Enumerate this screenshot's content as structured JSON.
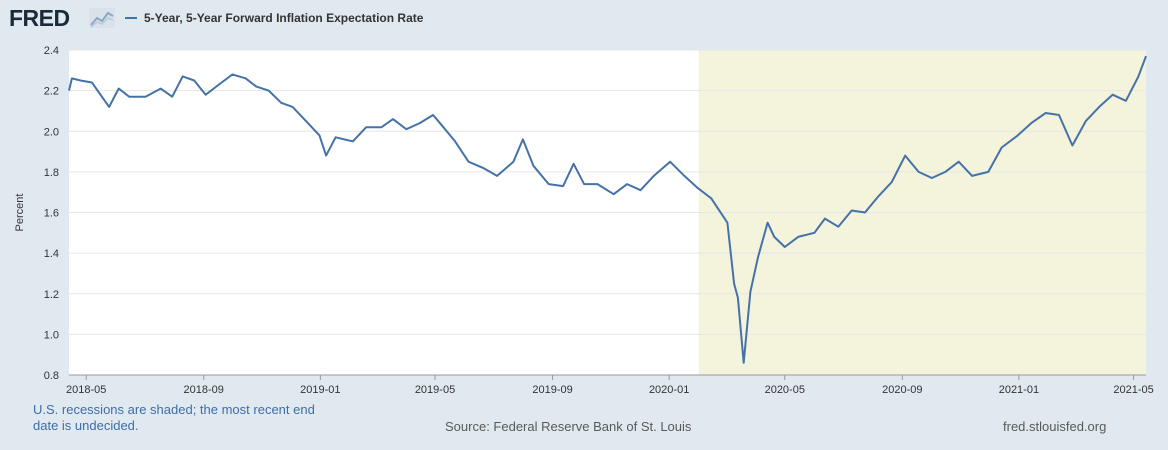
{
  "header": {
    "logo_text": "FRED",
    "logo_icon": "chart-line-icon",
    "legend_label": "5-Year, 5-Year Forward Inflation Expectation Rate"
  },
  "chart_data": {
    "type": "line",
    "title": "5-Year, 5-Year Forward Inflation Expectation Rate",
    "ylabel": "Percent",
    "xlabel": "",
    "ylim": [
      0.8,
      2.4
    ],
    "y_ticks": [
      "0.8",
      "1.0",
      "1.2",
      "1.4",
      "1.6",
      "1.8",
      "2.0",
      "2.2",
      "2.4"
    ],
    "x_ticks": [
      "2018-05",
      "2018-09",
      "2019-01",
      "2019-05",
      "2019-09",
      "2020-01",
      "2020-05",
      "2020-09",
      "2021-01",
      "2021-05"
    ],
    "xlim": [
      "2018-04-13",
      "2021-05-14"
    ],
    "recession_shading": {
      "start": "2020-02-01",
      "end": "2021-05-14"
    },
    "series": [
      {
        "name": "5-Year, 5-Year Forward Inflation Expectation Rate",
        "color": "#4572a7",
        "points": [
          [
            "2018-04-13",
            2.2
          ],
          [
            "2018-04-16",
            2.26
          ],
          [
            "2018-04-25",
            2.25
          ],
          [
            "2018-05-07",
            2.24
          ],
          [
            "2018-05-25",
            2.12
          ],
          [
            "2018-06-04",
            2.21
          ],
          [
            "2018-06-15",
            2.17
          ],
          [
            "2018-07-02",
            2.17
          ],
          [
            "2018-07-18",
            2.21
          ],
          [
            "2018-07-30",
            2.17
          ],
          [
            "2018-08-10",
            2.27
          ],
          [
            "2018-08-22",
            2.25
          ],
          [
            "2018-09-03",
            2.18
          ],
          [
            "2018-09-17",
            2.23
          ],
          [
            "2018-10-01",
            2.28
          ],
          [
            "2018-10-15",
            2.26
          ],
          [
            "2018-10-26",
            2.22
          ],
          [
            "2018-11-08",
            2.2
          ],
          [
            "2018-11-21",
            2.14
          ],
          [
            "2018-12-03",
            2.12
          ],
          [
            "2018-12-17",
            2.05
          ],
          [
            "2018-12-31",
            1.98
          ],
          [
            "2019-01-07",
            1.88
          ],
          [
            "2019-01-17",
            1.97
          ],
          [
            "2019-02-04",
            1.95
          ],
          [
            "2019-02-18",
            2.02
          ],
          [
            "2019-03-06",
            2.02
          ],
          [
            "2019-03-18",
            2.06
          ],
          [
            "2019-04-01",
            2.01
          ],
          [
            "2019-04-15",
            2.04
          ],
          [
            "2019-04-29",
            2.08
          ],
          [
            "2019-05-08",
            2.03
          ],
          [
            "2019-05-22",
            1.95
          ],
          [
            "2019-06-05",
            1.85
          ],
          [
            "2019-06-20",
            1.82
          ],
          [
            "2019-07-05",
            1.78
          ],
          [
            "2019-07-22",
            1.85
          ],
          [
            "2019-08-01",
            1.96
          ],
          [
            "2019-08-12",
            1.83
          ],
          [
            "2019-08-28",
            1.74
          ],
          [
            "2019-09-12",
            1.73
          ],
          [
            "2019-09-23",
            1.84
          ],
          [
            "2019-10-04",
            1.74
          ],
          [
            "2019-10-18",
            1.74
          ],
          [
            "2019-11-04",
            1.69
          ],
          [
            "2019-11-18",
            1.74
          ],
          [
            "2019-12-02",
            1.71
          ],
          [
            "2019-12-16",
            1.78
          ],
          [
            "2020-01-02",
            1.85
          ],
          [
            "2020-01-17",
            1.78
          ],
          [
            "2020-01-31",
            1.72
          ],
          [
            "2020-02-14",
            1.67
          ],
          [
            "2020-03-02",
            1.55
          ],
          [
            "2020-03-09",
            1.25
          ],
          [
            "2020-03-13",
            1.18
          ],
          [
            "2020-03-19",
            0.86
          ],
          [
            "2020-03-26",
            1.21
          ],
          [
            "2020-04-03",
            1.38
          ],
          [
            "2020-04-13",
            1.55
          ],
          [
            "2020-04-20",
            1.48
          ],
          [
            "2020-05-01",
            1.43
          ],
          [
            "2020-05-15",
            1.48
          ],
          [
            "2020-06-01",
            1.5
          ],
          [
            "2020-06-12",
            1.57
          ],
          [
            "2020-06-26",
            1.53
          ],
          [
            "2020-07-10",
            1.61
          ],
          [
            "2020-07-24",
            1.6
          ],
          [
            "2020-08-07",
            1.68
          ],
          [
            "2020-08-21",
            1.75
          ],
          [
            "2020-09-04",
            1.88
          ],
          [
            "2020-09-18",
            1.8
          ],
          [
            "2020-10-02",
            1.77
          ],
          [
            "2020-10-16",
            1.8
          ],
          [
            "2020-10-30",
            1.85
          ],
          [
            "2020-11-13",
            1.78
          ],
          [
            "2020-11-30",
            1.8
          ],
          [
            "2020-12-14",
            1.92
          ],
          [
            "2020-12-31",
            1.98
          ],
          [
            "2021-01-14",
            2.04
          ],
          [
            "2021-01-29",
            2.09
          ],
          [
            "2021-02-12",
            2.08
          ],
          [
            "2021-02-26",
            1.93
          ],
          [
            "2021-03-12",
            2.05
          ],
          [
            "2021-03-26",
            2.12
          ],
          [
            "2021-04-09",
            2.18
          ],
          [
            "2021-04-23",
            2.15
          ],
          [
            "2021-05-06",
            2.27
          ],
          [
            "2021-05-14",
            2.37
          ]
        ]
      }
    ],
    "colors": {
      "line": "#4572a7",
      "recession": "#f4f3dc",
      "plot_background": "#ffffff",
      "grid": "#e6e6e6"
    }
  },
  "footer": {
    "recession_note": "U.S. recessions are shaded; the most recent end date is undecided.",
    "source": "Source: Federal Reserve Bank of St. Louis",
    "site": "fred.stlouisfed.org"
  }
}
